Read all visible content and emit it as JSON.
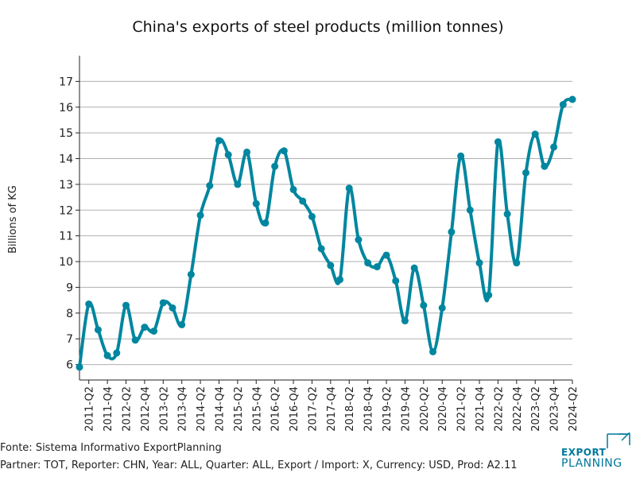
{
  "chart_data": {
    "type": "line",
    "title": "China's exports of steel products (million tonnes)",
    "ylabel": "Billions of KG",
    "xlabel": "",
    "ylim": [
      5.4,
      18.0
    ],
    "yticks": [
      6,
      7,
      8,
      9,
      10,
      11,
      12,
      13,
      14,
      15,
      16,
      17
    ],
    "x": [
      "2011-Q1",
      "2011-Q2",
      "2011-Q3",
      "2011-Q4",
      "2012-Q1",
      "2012-Q2",
      "2012-Q3",
      "2012-Q4",
      "2013-Q1",
      "2013-Q2",
      "2013-Q3",
      "2013-Q4",
      "2014-Q1",
      "2014-Q2",
      "2014-Q3",
      "2014-Q4",
      "2015-Q1",
      "2015-Q2",
      "2015-Q3",
      "2015-Q4",
      "2016-Q1",
      "2016-Q2",
      "2016-Q3",
      "2016-Q4",
      "2017-Q1",
      "2017-Q2",
      "2017-Q3",
      "2017-Q4",
      "2018-Q1",
      "2018-Q2",
      "2018-Q3",
      "2018-Q4",
      "2019-Q1",
      "2019-Q2",
      "2019-Q3",
      "2019-Q4",
      "2020-Q1",
      "2020-Q2",
      "2020-Q3",
      "2020-Q4",
      "2021-Q1",
      "2021-Q2",
      "2021-Q3",
      "2021-Q4",
      "2022-Q1",
      "2022-Q2",
      "2022-Q3",
      "2022-Q4",
      "2023-Q1",
      "2023-Q2",
      "2023-Q3",
      "2023-Q4",
      "2024-Q1",
      "2024-Q2"
    ],
    "xtick_labels": [
      "2011-Q2",
      "2011-Q4",
      "2012-Q2",
      "2012-Q4",
      "2013-Q2",
      "2013-Q4",
      "2014-Q2",
      "2014-Q4",
      "2015-Q2",
      "2015-Q4",
      "2016-Q2",
      "2016-Q4",
      "2017-Q2",
      "2017-Q4",
      "2018-Q2",
      "2018-Q4",
      "2019-Q2",
      "2019-Q4",
      "2020-Q2",
      "2020-Q4",
      "2021-Q2",
      "2021-Q4",
      "2022-Q2",
      "2022-Q4",
      "2023-Q2",
      "2023-Q4",
      "2024-Q2"
    ],
    "series": [
      {
        "name": "Exports",
        "color": "#00869f",
        "values": [
          5.9,
          8.35,
          7.35,
          6.35,
          6.45,
          8.3,
          6.95,
          7.45,
          7.3,
          8.4,
          8.2,
          7.55,
          9.5,
          11.8,
          12.95,
          14.7,
          14.15,
          13.0,
          14.25,
          12.25,
          11.5,
          13.7,
          14.3,
          12.8,
          12.35,
          11.75,
          10.5,
          9.85,
          9.3,
          12.85,
          10.85,
          9.95,
          9.8,
          10.25,
          9.25,
          7.7,
          9.75,
          8.3,
          6.5,
          8.2,
          11.15,
          14.1,
          12.0,
          9.95,
          8.7,
          14.65,
          11.85,
          9.95,
          13.45,
          14.95,
          13.7,
          14.45,
          16.1,
          16.3
        ]
      }
    ],
    "grid": true,
    "gridline_color": "#b0b0b0"
  },
  "footer": {
    "source": "Fonte: Sistema Informativo ExportPlanning",
    "meta": "Partner: TOT, Reporter: CHN, Year: ALL, Quarter: ALL, Export / Import: X, Currency: USD, Prod: A2.11"
  },
  "logo": {
    "line1": "EXPORT",
    "line2": "PLANNING",
    "color": "#00789a"
  }
}
